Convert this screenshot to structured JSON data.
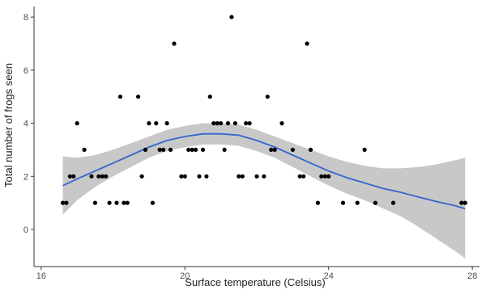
{
  "chart_data": {
    "type": "scatter",
    "title": "",
    "xlabel": "Surface temperature (Celsius)",
    "ylabel": "Total number of frogs seen",
    "xlim": [
      15.8,
      28.2
    ],
    "ylim": [
      -1.4,
      8.4
    ],
    "xticks": [
      16,
      20,
      24,
      28
    ],
    "yticks": [
      0,
      2,
      4,
      6,
      8
    ],
    "grid": false,
    "legend": "none",
    "colors": {
      "points": "#000000",
      "smooth_line": "#3366cc",
      "confidence_band": "#c8c8c8",
      "axis": "#333333"
    },
    "points": [
      {
        "x": 16.6,
        "y": 1
      },
      {
        "x": 16.7,
        "y": 1
      },
      {
        "x": 16.8,
        "y": 2
      },
      {
        "x": 16.9,
        "y": 2
      },
      {
        "x": 17.0,
        "y": 4
      },
      {
        "x": 17.2,
        "y": 3
      },
      {
        "x": 17.4,
        "y": 2
      },
      {
        "x": 17.5,
        "y": 1
      },
      {
        "x": 17.6,
        "y": 2
      },
      {
        "x": 17.7,
        "y": 2
      },
      {
        "x": 17.8,
        "y": 2
      },
      {
        "x": 17.9,
        "y": 1
      },
      {
        "x": 18.1,
        "y": 1
      },
      {
        "x": 18.2,
        "y": 5
      },
      {
        "x": 18.3,
        "y": 1
      },
      {
        "x": 18.4,
        "y": 1
      },
      {
        "x": 18.7,
        "y": 5
      },
      {
        "x": 18.8,
        "y": 2
      },
      {
        "x": 18.9,
        "y": 3
      },
      {
        "x": 19.0,
        "y": 4
      },
      {
        "x": 19.1,
        "y": 1
      },
      {
        "x": 19.2,
        "y": 4
      },
      {
        "x": 19.3,
        "y": 3
      },
      {
        "x": 19.4,
        "y": 3
      },
      {
        "x": 19.5,
        "y": 4
      },
      {
        "x": 19.6,
        "y": 3
      },
      {
        "x": 19.7,
        "y": 7
      },
      {
        "x": 19.9,
        "y": 2
      },
      {
        "x": 20.0,
        "y": 2
      },
      {
        "x": 20.1,
        "y": 3
      },
      {
        "x": 20.2,
        "y": 3
      },
      {
        "x": 20.3,
        "y": 3
      },
      {
        "x": 20.4,
        "y": 2
      },
      {
        "x": 20.5,
        "y": 3
      },
      {
        "x": 20.6,
        "y": 2
      },
      {
        "x": 20.7,
        "y": 5
      },
      {
        "x": 20.8,
        "y": 4
      },
      {
        "x": 20.9,
        "y": 4
      },
      {
        "x": 21.0,
        "y": 4
      },
      {
        "x": 21.1,
        "y": 3
      },
      {
        "x": 21.2,
        "y": 4
      },
      {
        "x": 21.3,
        "y": 8
      },
      {
        "x": 21.4,
        "y": 4
      },
      {
        "x": 21.5,
        "y": 2
      },
      {
        "x": 21.6,
        "y": 2
      },
      {
        "x": 21.7,
        "y": 4
      },
      {
        "x": 21.8,
        "y": 4
      },
      {
        "x": 22.0,
        "y": 2
      },
      {
        "x": 22.2,
        "y": 2
      },
      {
        "x": 22.3,
        "y": 5
      },
      {
        "x": 22.4,
        "y": 3
      },
      {
        "x": 22.5,
        "y": 3
      },
      {
        "x": 22.7,
        "y": 4
      },
      {
        "x": 23.0,
        "y": 3
      },
      {
        "x": 23.2,
        "y": 2
      },
      {
        "x": 23.3,
        "y": 2
      },
      {
        "x": 23.4,
        "y": 7
      },
      {
        "x": 23.5,
        "y": 3
      },
      {
        "x": 23.7,
        "y": 1
      },
      {
        "x": 23.8,
        "y": 2
      },
      {
        "x": 23.9,
        "y": 2
      },
      {
        "x": 24.0,
        "y": 2
      },
      {
        "x": 24.4,
        "y": 1
      },
      {
        "x": 24.8,
        "y": 1
      },
      {
        "x": 25.0,
        "y": 3
      },
      {
        "x": 25.3,
        "y": 1
      },
      {
        "x": 25.8,
        "y": 1
      },
      {
        "x": 27.7,
        "y": 1
      },
      {
        "x": 27.8,
        "y": 1
      }
    ],
    "smooth": [
      {
        "x": 16.6,
        "y": 1.65,
        "lo": 0.55,
        "hi": 2.75
      },
      {
        "x": 17.0,
        "y": 1.9,
        "lo": 1.1,
        "hi": 2.7
      },
      {
        "x": 17.5,
        "y": 2.2,
        "lo": 1.6,
        "hi": 2.8
      },
      {
        "x": 18.0,
        "y": 2.5,
        "lo": 2.0,
        "hi": 3.0
      },
      {
        "x": 18.5,
        "y": 2.8,
        "lo": 2.35,
        "hi": 3.25
      },
      {
        "x": 19.0,
        "y": 3.1,
        "lo": 2.7,
        "hi": 3.5
      },
      {
        "x": 19.5,
        "y": 3.35,
        "lo": 2.95,
        "hi": 3.75
      },
      {
        "x": 20.0,
        "y": 3.5,
        "lo": 3.1,
        "hi": 3.9
      },
      {
        "x": 20.5,
        "y": 3.6,
        "lo": 3.2,
        "hi": 4.0
      },
      {
        "x": 21.0,
        "y": 3.6,
        "lo": 3.2,
        "hi": 4.0
      },
      {
        "x": 21.5,
        "y": 3.55,
        "lo": 3.15,
        "hi": 3.95
      },
      {
        "x": 22.0,
        "y": 3.35,
        "lo": 2.95,
        "hi": 3.75
      },
      {
        "x": 22.5,
        "y": 3.1,
        "lo": 2.7,
        "hi": 3.5
      },
      {
        "x": 23.0,
        "y": 2.8,
        "lo": 2.35,
        "hi": 3.25
      },
      {
        "x": 23.5,
        "y": 2.5,
        "lo": 2.0,
        "hi": 3.0
      },
      {
        "x": 24.0,
        "y": 2.2,
        "lo": 1.65,
        "hi": 2.75
      },
      {
        "x": 24.5,
        "y": 1.95,
        "lo": 1.35,
        "hi": 2.55
      },
      {
        "x": 25.0,
        "y": 1.75,
        "lo": 1.1,
        "hi": 2.4
      },
      {
        "x": 25.5,
        "y": 1.55,
        "lo": 0.8,
        "hi": 2.3
      },
      {
        "x": 26.0,
        "y": 1.4,
        "lo": 0.5,
        "hi": 2.3
      },
      {
        "x": 26.5,
        "y": 1.22,
        "lo": 0.1,
        "hi": 2.35
      },
      {
        "x": 27.0,
        "y": 1.05,
        "lo": -0.35,
        "hi": 2.45
      },
      {
        "x": 27.5,
        "y": 0.9,
        "lo": -0.8,
        "hi": 2.6
      },
      {
        "x": 27.8,
        "y": 0.78,
        "lo": -1.1,
        "hi": 2.7
      }
    ]
  }
}
